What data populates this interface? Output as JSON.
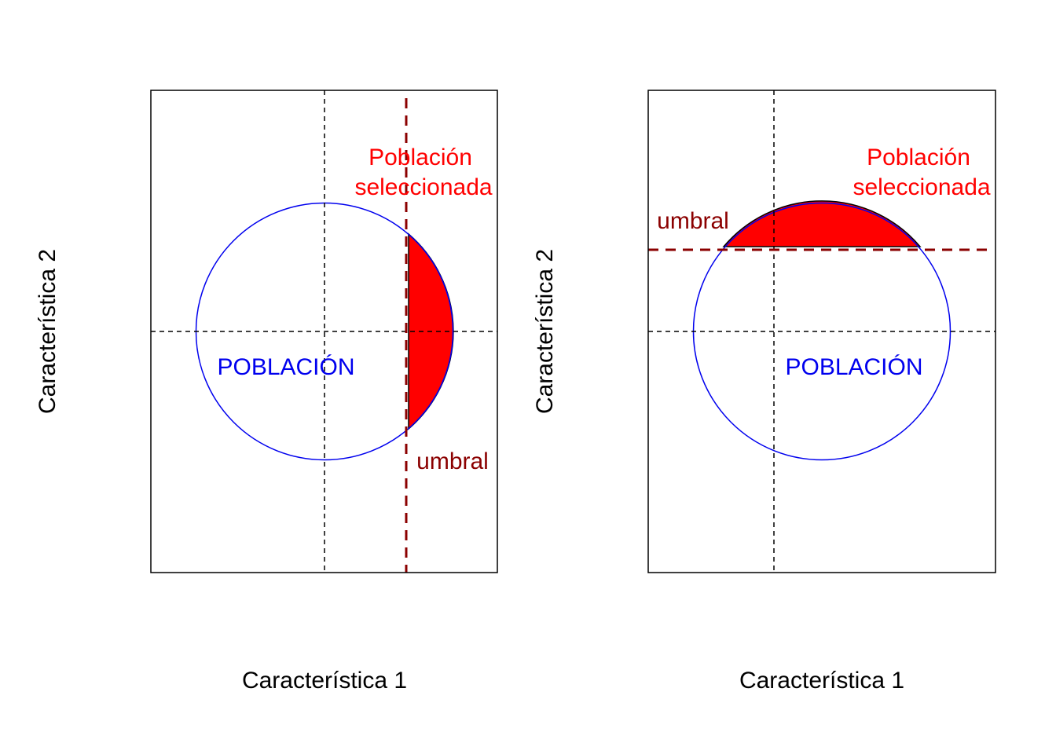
{
  "colors": {
    "frame": "#000000",
    "axis_guides": "#000000",
    "population": "#0000ee",
    "threshold": "#8b0000",
    "selected_fill": "#ff0000",
    "selected_label": "#ff0000"
  },
  "panels": [
    {
      "xlabel": "Característica 1",
      "ylabel": "Característica 2",
      "population_label": "POBLACIÓN",
      "selected_label_line1": "Población",
      "selected_label_line2": "seleccionada",
      "threshold_label": "umbral",
      "threshold_orientation": "vertical"
    },
    {
      "xlabel": "Característica 1",
      "ylabel": "Característica 2",
      "population_label": "POBLACIÓN",
      "selected_label_line1": "Población",
      "selected_label_line2": "seleccionada",
      "threshold_label": "umbral",
      "threshold_orientation": "horizontal"
    }
  ]
}
